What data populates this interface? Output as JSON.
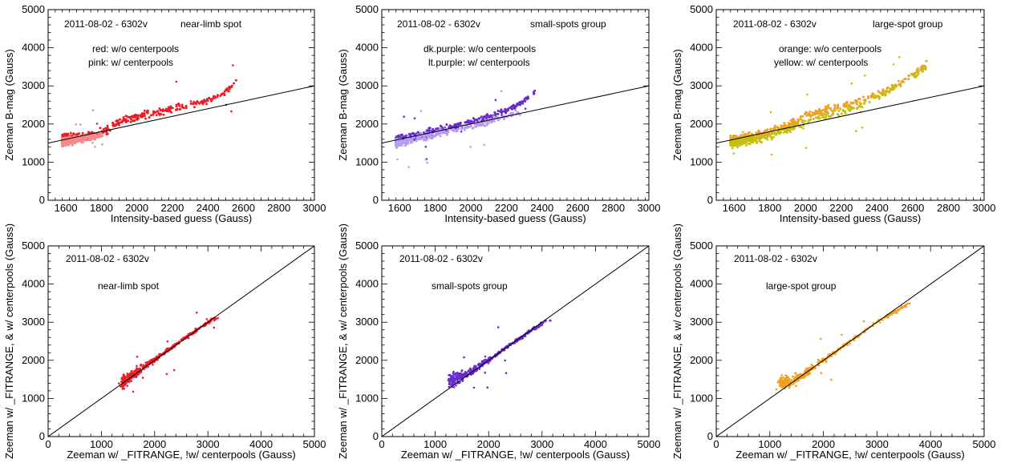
{
  "colors": {
    "red": "#ee1c25",
    "pink": "#f58a8a",
    "dark_purple": "#6a2bd0",
    "light_purple": "#b79cf0",
    "orange": "#f0a020",
    "yellow": "#c4bf10",
    "line": "#000000"
  },
  "chart_data": [
    {
      "type": "scatter",
      "xlabel": "Intensity-based guess (Gauss)",
      "ylabel": "Zeeman B-mag (Gauss)",
      "xlim": [
        1500,
        3000
      ],
      "ylim": [
        0,
        5000
      ],
      "xticks": [
        1600,
        1800,
        2000,
        2200,
        2400,
        2600,
        2800,
        3000
      ],
      "xtick_labels": [
        "1600",
        "1800",
        "2000",
        "2200",
        "2400",
        "2600",
        "2800",
        "3000"
      ],
      "yticks": [
        0,
        1000,
        2000,
        3000,
        4000,
        5000
      ],
      "ytick_labels": [
        "0",
        "1000",
        "2000",
        "3000",
        "4000",
        "5000"
      ],
      "annotations": [
        "2011-08-02 - 6302v",
        "near-limb spot",
        "red: w/o centerpools",
        "pink: w/ centerpools"
      ],
      "reference_line": {
        "x": [
          1500,
          3000
        ],
        "y": [
          1500,
          3000
        ]
      },
      "series": [
        {
          "name": "red: w/o centerpools",
          "color": "red",
          "trend": [
            [
              1580,
              1620
            ],
            [
              1700,
              1650
            ],
            [
              1800,
              1780
            ],
            [
              1900,
              2050
            ],
            [
              2000,
              2200
            ],
            [
              2100,
              2300
            ],
            [
              2200,
              2400
            ],
            [
              2300,
              2500
            ],
            [
              2400,
              2620
            ],
            [
              2500,
              2820
            ],
            [
              2570,
              3150
            ]
          ]
        },
        {
          "name": "pink: w/ centerpools",
          "color": "pink",
          "trend": [
            [
              1580,
              1500
            ],
            [
              1650,
              1570
            ],
            [
              1720,
              1640
            ],
            [
              1810,
              1720
            ]
          ]
        }
      ]
    },
    {
      "type": "scatter",
      "xlabel": "Intensity-based guess (Gauss)",
      "ylabel": "Zeeman B-mag (Gauss)",
      "xlim": [
        1500,
        3000
      ],
      "ylim": [
        0,
        5000
      ],
      "xticks": [
        1600,
        1800,
        2000,
        2200,
        2400,
        2600,
        2800,
        3000
      ],
      "xtick_labels": [
        "1600",
        "1800",
        "2000",
        "2200",
        "2400",
        "2600",
        "2800",
        "3000"
      ],
      "yticks": [
        0,
        1000,
        2000,
        3000,
        4000,
        5000
      ],
      "ytick_labels": [
        "0",
        "1000",
        "2000",
        "3000",
        "4000",
        "5000"
      ],
      "annotations": [
        "2011-08-02 - 6302v",
        "small-spots group",
        "dk.purple: w/o centerpools",
        "lt.purple: w/ centerpools"
      ],
      "reference_line": {
        "x": [
          1500,
          3000
        ],
        "y": [
          1500,
          3000
        ]
      },
      "series": [
        {
          "name": "dk.purple: w/o centerpools",
          "color": "dark_purple",
          "trend": [
            [
              1580,
              1560
            ],
            [
              1700,
              1680
            ],
            [
              1800,
              1800
            ],
            [
              1900,
              1920
            ],
            [
              2000,
              2050
            ],
            [
              2100,
              2200
            ],
            [
              2200,
              2350
            ],
            [
              2300,
              2600
            ],
            [
              2360,
              2850
            ]
          ]
        },
        {
          "name": "lt.purple: w/ centerpools",
          "color": "light_purple",
          "trend": [
            [
              1580,
              1500
            ],
            [
              1700,
              1620
            ],
            [
              1800,
              1720
            ],
            [
              1900,
              1840
            ],
            [
              2000,
              1950
            ],
            [
              2100,
              2080
            ],
            [
              2200,
              2200
            ],
            [
              2290,
              2320
            ]
          ]
        }
      ]
    },
    {
      "type": "scatter",
      "xlabel": "Intensity-based guess (Gauss)",
      "ylabel": "Zeeman B-mag (Gauss)",
      "xlim": [
        1500,
        3000
      ],
      "ylim": [
        0,
        5000
      ],
      "xticks": [
        1600,
        1800,
        2000,
        2200,
        2400,
        2600,
        2800,
        3000
      ],
      "xtick_labels": [
        "1600",
        "1800",
        "2000",
        "2200",
        "2400",
        "2600",
        "2800",
        "3000"
      ],
      "yticks": [
        0,
        1000,
        2000,
        3000,
        4000,
        5000
      ],
      "ytick_labels": [
        "0",
        "1000",
        "2000",
        "3000",
        "4000",
        "5000"
      ],
      "annotations": [
        "2011-08-02 - 6302v",
        "large-spot group",
        "orange: w/o centerpools",
        "yellow: w/ centerpools"
      ],
      "reference_line": {
        "x": [
          1500,
          3000
        ],
        "y": [
          1500,
          3000
        ]
      },
      "series": [
        {
          "name": "orange: w/o centerpools",
          "color": "orange",
          "trend": [
            [
              1580,
              1550
            ],
            [
              1700,
              1650
            ],
            [
              1800,
              1800
            ],
            [
              1900,
              1980
            ],
            [
              2000,
              2200
            ],
            [
              2100,
              2350
            ],
            [
              2200,
              2480
            ],
            [
              2300,
              2600
            ],
            [
              2400,
              2780
            ],
            [
              2500,
              3000
            ],
            [
              2600,
              3300
            ],
            [
              2680,
              3600
            ]
          ]
        },
        {
          "name": "yellow: w/ centerpools",
          "color": "yellow",
          "trend": [
            [
              1580,
              1500
            ],
            [
              1700,
              1580
            ],
            [
              1800,
              1680
            ],
            [
              1900,
              1850
            ],
            [
              2000,
              2050
            ],
            [
              2100,
              2200
            ],
            [
              2200,
              2320
            ],
            [
              2300,
              2480
            ],
            [
              2400,
              2700
            ],
            [
              2500,
              2950
            ],
            [
              2600,
              3250
            ],
            [
              2680,
              3500
            ]
          ]
        }
      ]
    },
    {
      "type": "scatter",
      "xlabel": "Zeeman w/ _FITRANGE, !w/ centerpools (Gauss)",
      "ylabel": "Zeeman w/ _FITRANGE, & w/ centerpools (Gauss)",
      "xlim": [
        0,
        5000
      ],
      "ylim": [
        0,
        5000
      ],
      "xticks": [
        0,
        1000,
        2000,
        3000,
        4000,
        5000
      ],
      "xtick_labels": [
        "0",
        "1000",
        "2000",
        "3000",
        "4000",
        "5000"
      ],
      "yticks": [
        0,
        1000,
        2000,
        3000,
        4000,
        5000
      ],
      "ytick_labels": [
        "0",
        "1000",
        "2000",
        "3000",
        "4000",
        "5000"
      ],
      "annotations": [
        "2011-08-02 - 6302v",
        "near-limb spot"
      ],
      "reference_line": {
        "x": [
          0,
          5000
        ],
        "y": [
          0,
          5000
        ]
      },
      "series": [
        {
          "color": "red",
          "trend": [
            [
              1400,
              1420
            ],
            [
              1800,
              1820
            ],
            [
              2200,
              2220
            ],
            [
              2600,
              2620
            ],
            [
              3000,
              3000
            ],
            [
              3150,
              3100
            ]
          ]
        }
      ]
    },
    {
      "type": "scatter",
      "xlabel": "Zeeman w/ _FITRANGE, !w/ centerpools (Gauss)",
      "ylabel": "Zeeman w/ _FITRANGE, & w/ centerpools (Gauss)",
      "xlim": [
        0,
        5000
      ],
      "ylim": [
        0,
        5000
      ],
      "xticks": [
        0,
        1000,
        2000,
        3000,
        4000,
        5000
      ],
      "xtick_labels": [
        "0",
        "1000",
        "2000",
        "3000",
        "4000",
        "5000"
      ],
      "yticks": [
        0,
        1000,
        2000,
        3000,
        4000,
        5000
      ],
      "ytick_labels": [
        "0",
        "1000",
        "2000",
        "3000",
        "4000",
        "5000"
      ],
      "annotations": [
        "2011-08-02 - 6302v",
        "small-spots group"
      ],
      "reference_line": {
        "x": [
          0,
          5000
        ],
        "y": [
          0,
          5000
        ]
      },
      "series": [
        {
          "color": "dark_purple",
          "trend": [
            [
              1300,
              1450
            ],
            [
              1600,
              1650
            ],
            [
              2000,
              2000
            ],
            [
              2400,
              2400
            ],
            [
              2800,
              2780
            ],
            [
              3100,
              3050
            ]
          ]
        }
      ]
    },
    {
      "type": "scatter",
      "xlabel": "Zeeman w/ _FITRANGE, !w/ centerpools (Gauss)",
      "ylabel": "Zeeman w/ _FITRANGE, & w/ centerpools (Gauss)",
      "xlim": [
        0,
        5000
      ],
      "ylim": [
        0,
        5000
      ],
      "xticks": [
        0,
        1000,
        2000,
        3000,
        4000,
        5000
      ],
      "xtick_labels": [
        "0",
        "1000",
        "2000",
        "3000",
        "4000",
        "5000"
      ],
      "yticks": [
        0,
        1000,
        2000,
        3000,
        4000,
        5000
      ],
      "ytick_labels": [
        "0",
        "1000",
        "2000",
        "3000",
        "4000",
        "5000"
      ],
      "annotations": [
        "2011-08-02 - 6302v",
        "large-spot group"
      ],
      "reference_line": {
        "x": [
          0,
          5000
        ],
        "y": [
          0,
          5000
        ]
      },
      "series": [
        {
          "color": "orange",
          "trend": [
            [
              1200,
              1400
            ],
            [
              1500,
              1500
            ],
            [
              2000,
              2000
            ],
            [
              2500,
              2500
            ],
            [
              3000,
              3000
            ],
            [
              3600,
              3500
            ]
          ]
        }
      ]
    }
  ]
}
